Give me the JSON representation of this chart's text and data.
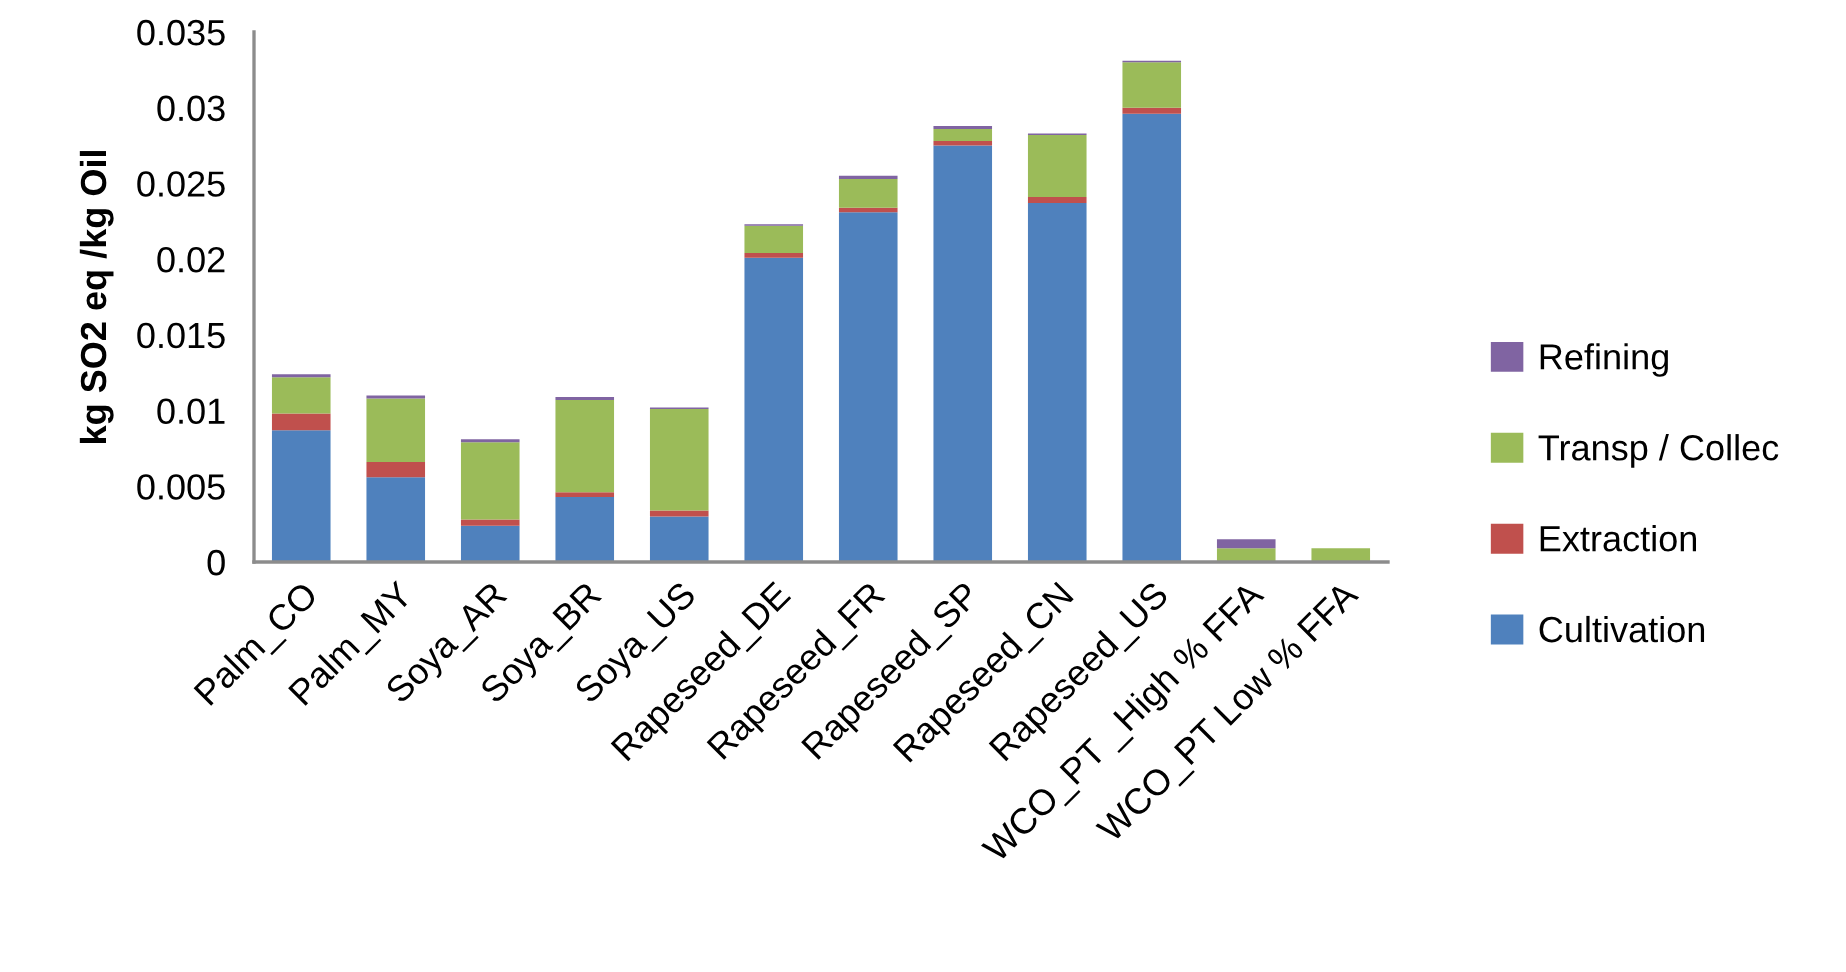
{
  "chart_data": {
    "type": "bar",
    "stacked": true,
    "categories": [
      "Palm_CO",
      "Palm_MY",
      "Soya_AR",
      "Soya_BR",
      "Soya_US",
      "Rapeseed_DE",
      "Rapeseed_FR",
      "Rapeseed_SP",
      "Rapeseed_CN",
      "Rapeseed_US",
      "WCO_PT _High % FFA",
      "WCO_PT Low % FFA"
    ],
    "ylabel": "kg SO2 eq /kg Oil",
    "ylim": [
      0,
      0.035
    ],
    "yticks": [
      0,
      0.005,
      0.01,
      0.015,
      0.02,
      0.025,
      0.03,
      0.035
    ],
    "legend": "right",
    "grid": false,
    "series": [
      {
        "name": "Cultivation",
        "color": "#4f81bd",
        "values": [
          0.0087,
          0.0056,
          0.0024,
          0.0043,
          0.003,
          0.0201,
          0.0231,
          0.0275,
          0.0237,
          0.0296,
          0,
          0
        ]
      },
      {
        "name": "Extraction",
        "color": "#c0504d",
        "values": [
          0.0011,
          0.001,
          0.0004,
          0.0003,
          0.0004,
          0.0003,
          0.0003,
          0.0003,
          0.0004,
          0.0004,
          0,
          0
        ]
      },
      {
        "name": "Transp / Collec",
        "color": "#9bbb59",
        "values": [
          0.0024,
          0.0042,
          0.0051,
          0.0061,
          0.0067,
          0.0018,
          0.0019,
          0.0008,
          0.0041,
          0.003,
          0.0009,
          0.0009
        ]
      },
      {
        "name": "Refining",
        "color": "#8064a2",
        "values": [
          0.0002,
          0.0002,
          0.0002,
          0.0002,
          0.0001,
          0.0001,
          0.0002,
          0.0002,
          0.0001,
          0.0001,
          0.0006,
          0
        ]
      }
    ]
  }
}
